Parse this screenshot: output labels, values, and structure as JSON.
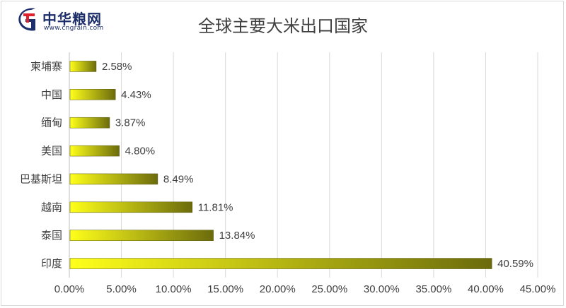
{
  "logo": {
    "name": "中华粮网",
    "url": "www.cngrain.com"
  },
  "chart_data": {
    "type": "bar",
    "orientation": "horizontal",
    "title": "全球主要大米出口国家",
    "categories": [
      "柬埔寨",
      "中国",
      "缅甸",
      "美国",
      "巴基斯坦",
      "越南",
      "泰国",
      "印度"
    ],
    "values": [
      2.58,
      4.43,
      3.87,
      4.8,
      8.49,
      11.81,
      13.84,
      40.59
    ],
    "data_labels": [
      "2.58%",
      "4.43%",
      "3.87%",
      "4.80%",
      "8.49%",
      "11.81%",
      "13.84%",
      "40.59%"
    ],
    "xlim": [
      0,
      45
    ],
    "x_ticks": [
      "0.00%",
      "5.00%",
      "10.00%",
      "15.00%",
      "20.00%",
      "25.00%",
      "30.00%",
      "35.00%",
      "40.00%",
      "45.00%"
    ],
    "grid": "vertical",
    "bar_gradient": [
      "#ffff1a",
      "#6b6b0c"
    ]
  }
}
